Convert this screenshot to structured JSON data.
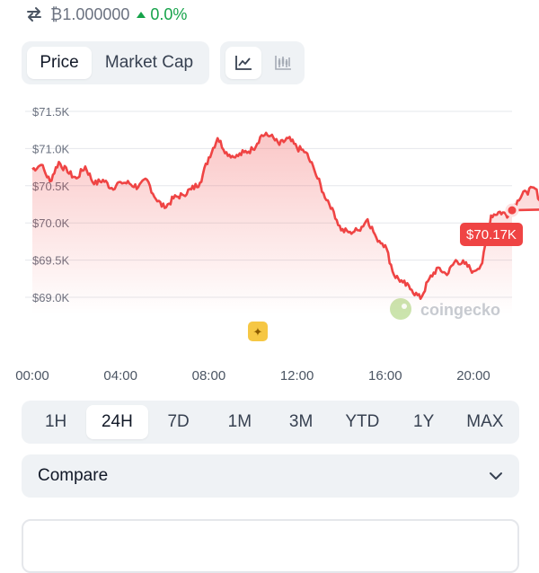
{
  "conversion": {
    "swap_icon": "swap-arrows-icon",
    "rate": "₿1.000000",
    "change": "0.0%",
    "change_color": "#16a34a"
  },
  "metric_tabs": [
    {
      "label": "Price",
      "active": true
    },
    {
      "label": "Market Cap",
      "active": false
    }
  ],
  "chart_type_icons": [
    "line-chart-icon",
    "candlestick-chart-icon"
  ],
  "chart_data": {
    "type": "line",
    "x_ticks": [
      "00:00",
      "04:00",
      "08:00",
      "12:00",
      "16:00",
      "20:00"
    ],
    "y_ticks": [
      "$69.0K",
      "$69.5K",
      "$70.0K",
      "$70.5K",
      "$71.0K",
      "$71.5K"
    ],
    "ylim": [
      68900,
      71600
    ],
    "grid": true,
    "line_color": "#ef4444",
    "current_label": "$70.17K",
    "watermark": "coingecko",
    "series": [
      {
        "x": [
          0,
          0.4,
          0.8,
          1.2,
          1.6,
          2.0,
          2.4,
          2.8,
          3.2,
          3.6,
          4.0,
          4.4,
          4.8,
          5.2,
          5.6,
          6.0,
          6.4,
          6.8,
          7.2,
          7.6,
          8.0,
          8.4,
          8.8,
          9.2,
          9.6,
          10.0,
          10.4,
          10.8,
          11.2,
          11.6,
          12.0,
          12.4,
          12.8,
          13.2,
          13.6,
          14.0,
          14.4,
          14.8,
          15.2,
          15.6,
          16.0,
          16.4,
          16.8,
          17.2,
          17.6,
          18.0,
          18.4,
          18.8,
          19.2,
          19.6,
          20.0,
          20.4,
          20.8,
          21.2,
          21.6,
          22.0,
          22.4,
          22.8,
          23.2
        ],
        "values": [
          70720,
          70780,
          70560,
          70820,
          70680,
          70600,
          70760,
          70520,
          70580,
          70470,
          70550,
          70530,
          70480,
          70580,
          70320,
          70200,
          70330,
          70380,
          70450,
          70540,
          70880,
          71140,
          70950,
          70880,
          70950,
          70990,
          71180,
          71170,
          71050,
          71140,
          71010,
          70950,
          70700,
          70400,
          70200,
          69900,
          69880,
          69900,
          70050,
          69800,
          69700,
          69300,
          69200,
          69100,
          68980,
          69250,
          69400,
          69300,
          69500,
          69450,
          69350,
          69460,
          70100,
          70150,
          70100,
          70300,
          70420,
          70460,
          70180
        ]
      }
    ]
  },
  "event_marker_icon": "star-badge-icon",
  "range_tabs": [
    {
      "label": "1H",
      "active": false
    },
    {
      "label": "24H",
      "active": true
    },
    {
      "label": "7D",
      "active": false
    },
    {
      "label": "1M",
      "active": false
    },
    {
      "label": "3M",
      "active": false
    },
    {
      "label": "YTD",
      "active": false
    },
    {
      "label": "1Y",
      "active": false
    },
    {
      "label": "MAX",
      "active": false
    }
  ],
  "compare": {
    "label": "Compare",
    "icon": "chevron-down-icon"
  }
}
